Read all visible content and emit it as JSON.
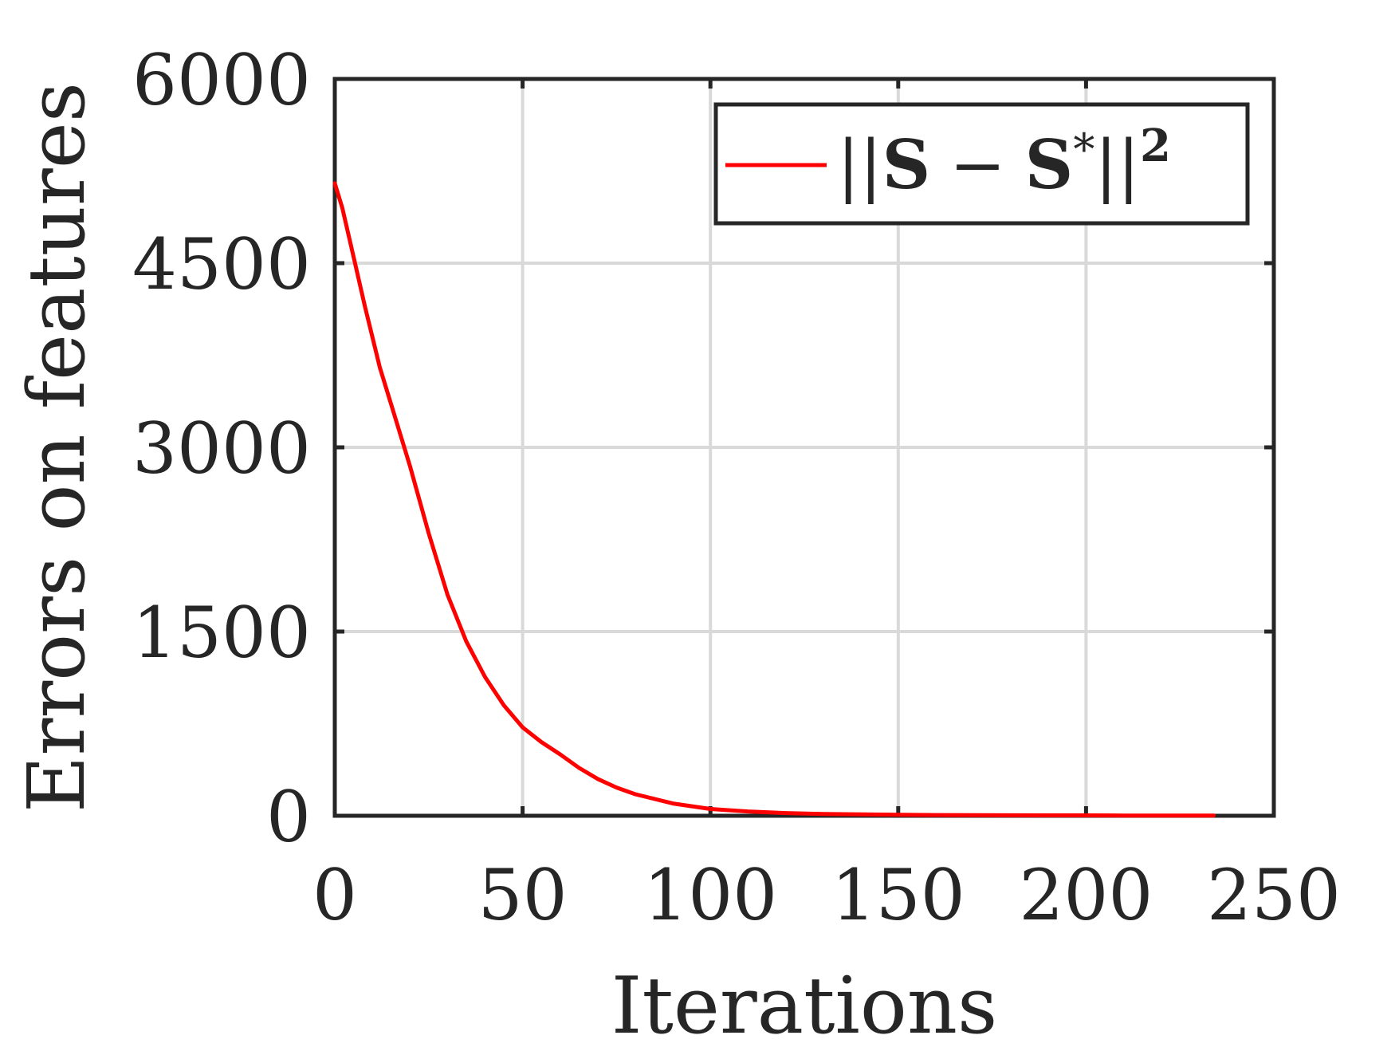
{
  "chart_data": {
    "type": "line",
    "title": "",
    "xlabel": "Iterations",
    "ylabel": "Errors on features",
    "xlim": [
      0,
      250
    ],
    "ylim": [
      0,
      6000
    ],
    "xticks": [
      0,
      50,
      100,
      150,
      200,
      250
    ],
    "yticks": [
      0,
      1500,
      3000,
      4500,
      6000
    ],
    "xtick_labels": [
      "0",
      "50",
      "100",
      "150",
      "200",
      "250"
    ],
    "ytick_labels": [
      "0",
      "1500",
      "3000",
      "4500",
      "6000"
    ],
    "grid": true,
    "legend_position": "top-right",
    "series": [
      {
        "name": "||S − S*||²",
        "name_parts": {
          "open": "||",
          "symbol": "S",
          "minus": "−",
          "symbol2": "S",
          "star": "*",
          "close": "||",
          "power": "2"
        },
        "color": "#ff0000",
        "x": [
          0,
          2,
          5,
          8,
          10,
          12,
          15,
          20,
          25,
          30,
          35,
          40,
          45,
          50,
          55,
          60,
          65,
          70,
          75,
          80,
          90,
          100,
          110,
          120,
          130,
          140,
          150,
          160,
          170,
          180,
          190,
          200,
          210,
          220,
          234
        ],
        "y": [
          5150,
          4950,
          4550,
          4150,
          3900,
          3650,
          3350,
          2850,
          2300,
          1800,
          1420,
          1130,
          900,
          720,
          600,
          500,
          390,
          300,
          230,
          175,
          100,
          55,
          35,
          22,
          15,
          11,
          8,
          6,
          5,
          4,
          3,
          3,
          2,
          2,
          2
        ]
      }
    ]
  }
}
